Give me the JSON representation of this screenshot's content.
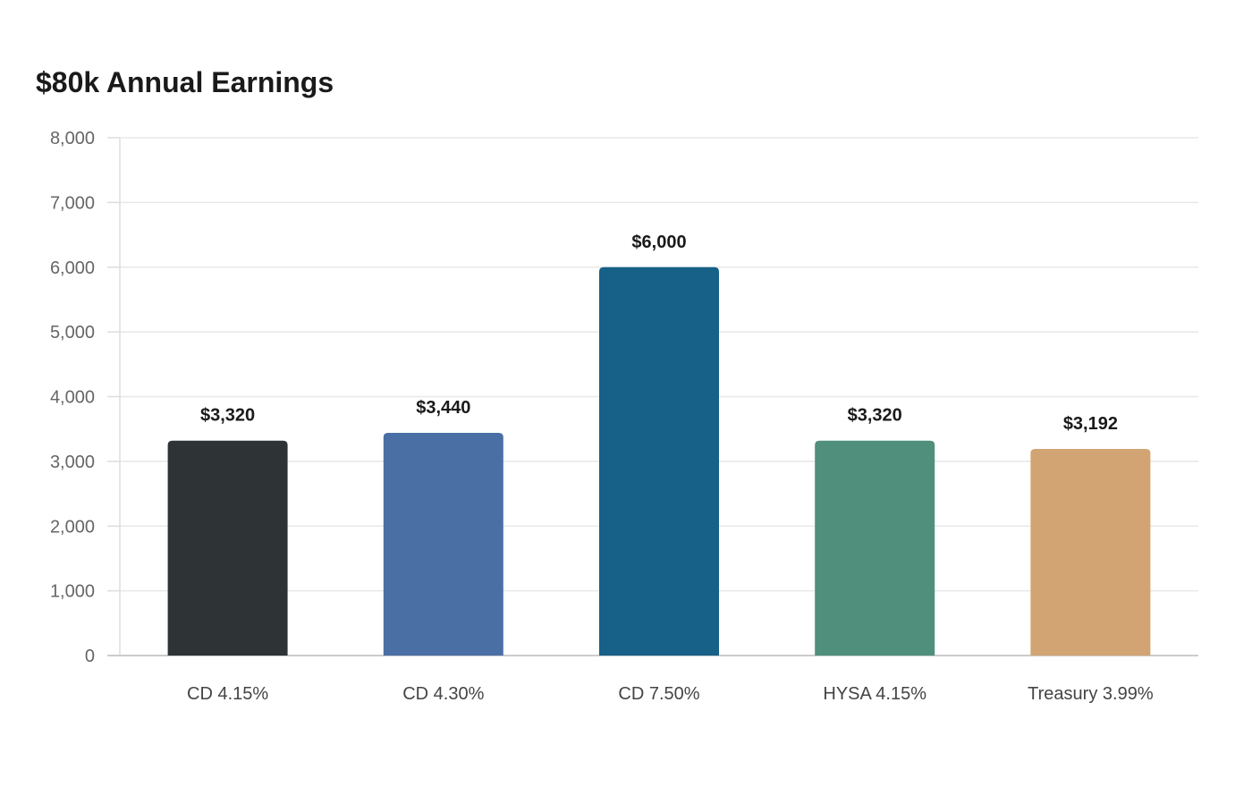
{
  "chart_data": {
    "type": "bar",
    "title": "$80k Annual Earnings",
    "categories": [
      "CD 4.15%",
      "CD 4.30%",
      "CD 7.50%",
      "HYSA 4.15%",
      "Treasury 3.99%"
    ],
    "values": [
      3320,
      3440,
      6000,
      3320,
      3192
    ],
    "data_labels": [
      "$3,320",
      "$3,440",
      "$6,000",
      "$3,320",
      "$3,192"
    ],
    "colors": [
      "#2e3436",
      "#4a6fa5",
      "#176087",
      "#4f8f7c",
      "#d2a473"
    ],
    "ylim": [
      0,
      8000
    ],
    "yticks": [
      0,
      1000,
      2000,
      3000,
      4000,
      5000,
      6000,
      7000,
      8000
    ],
    "ytick_labels": [
      "0",
      "1,000",
      "2,000",
      "3,000",
      "4,000",
      "5,000",
      "6,000",
      "7,000",
      "8,000"
    ],
    "xlabel": "",
    "ylabel": "",
    "grid": true,
    "legend": "none"
  }
}
